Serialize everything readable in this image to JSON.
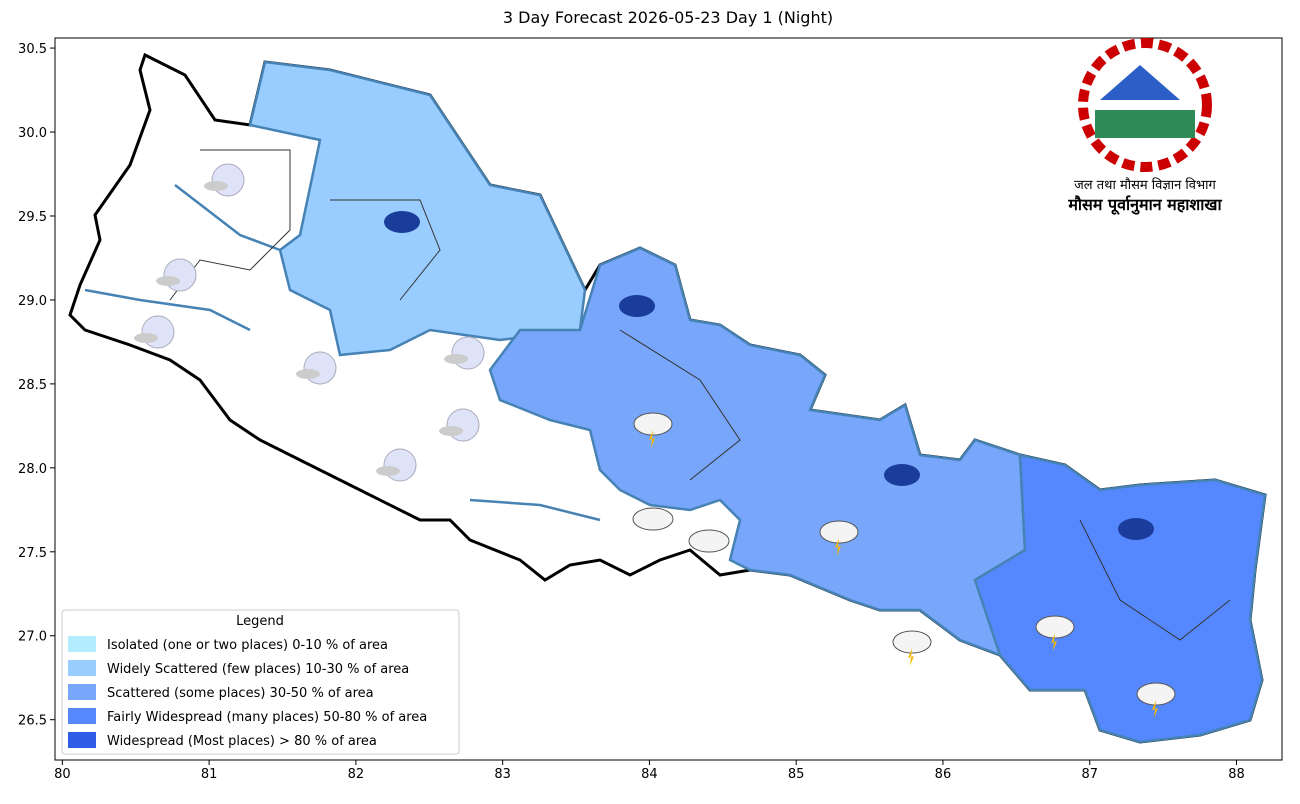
{
  "chart_data": {
    "type": "map",
    "title": "3 Day Forecast 2026-05-23 Day 1 (Night)",
    "xlim": [
      79.95,
      88.31
    ],
    "ylim": [
      26.26,
      30.56
    ],
    "xticks": [
      80,
      81,
      82,
      83,
      84,
      85,
      86,
      87,
      88
    ],
    "yticks": [
      26.5,
      {
        "value": 27,
        "label": "27.0"
      },
      27.5,
      {
        "value": 28,
        "label": "28.0"
      },
      28.5,
      {
        "value": 29,
        "label": "29.0"
      },
      29.5,
      {
        "value": 30,
        "label": "30.0"
      },
      30.5
    ],
    "legend": {
      "title": "Legend",
      "items": [
        {
          "label": "Isolated (one or two places)  0-10 % of area",
          "color": "#b3ecff"
        },
        {
          "label": "Widely Scattered (few places)  10-30 % of area",
          "color": "#99ccff"
        },
        {
          "label": "Scattered (some places)  30-50 % of area",
          "color": "#77a6fa"
        },
        {
          "label": "Fairly Widespread (many places)  50-80 % of area",
          "color": "#5588ff"
        },
        {
          "label": "Widespread (Most places) > 80 % of area",
          "color": "#2e5ce6"
        }
      ]
    },
    "logo": {
      "department": "जल तथा मौसम विज्ञान विभाग",
      "division": "मौसम पूर्वानुमान महाशाखा"
    }
  }
}
